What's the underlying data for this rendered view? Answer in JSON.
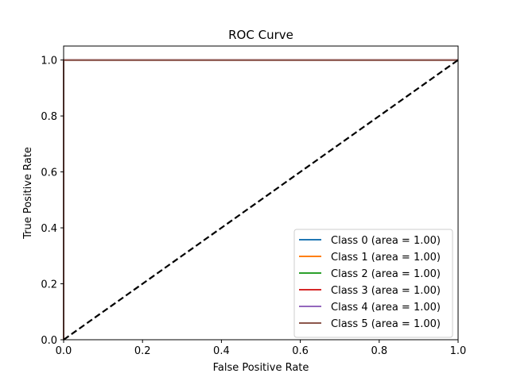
{
  "chart_data": {
    "type": "line",
    "title": "ROC Curve",
    "xlabel": "False Positive Rate",
    "ylabel": "True Positive Rate",
    "xlim": [
      0.0,
      1.0
    ],
    "ylim": [
      0.0,
      1.05
    ],
    "x_ticks": [
      "0.0",
      "0.2",
      "0.4",
      "0.6",
      "0.8",
      "1.0"
    ],
    "y_ticks": [
      "0.0",
      "0.2",
      "0.4",
      "0.6",
      "0.8",
      "1.0"
    ],
    "grid": false,
    "legend_position": "lower-right",
    "series": [
      {
        "name": "Class 0 (area = 1.00)",
        "color": "#1f77b4",
        "points": [
          [
            0.0,
            0.0
          ],
          [
            0.0,
            1.0
          ],
          [
            1.0,
            1.0
          ]
        ]
      },
      {
        "name": "Class 1 (area = 1.00)",
        "color": "#ff7f0e",
        "points": [
          [
            0.0,
            0.0
          ],
          [
            0.0,
            1.0
          ],
          [
            1.0,
            1.0
          ]
        ]
      },
      {
        "name": "Class 2 (area = 1.00)",
        "color": "#2ca02c",
        "points": [
          [
            0.0,
            0.0
          ],
          [
            0.0,
            1.0
          ],
          [
            1.0,
            1.0
          ]
        ]
      },
      {
        "name": "Class 3 (area = 1.00)",
        "color": "#d62728",
        "points": [
          [
            0.0,
            0.0
          ],
          [
            0.0,
            1.0
          ],
          [
            1.0,
            1.0
          ]
        ]
      },
      {
        "name": "Class 4 (area = 1.00)",
        "color": "#9467bd",
        "points": [
          [
            0.0,
            0.0
          ],
          [
            0.0,
            1.0
          ],
          [
            1.0,
            1.0
          ]
        ]
      },
      {
        "name": "Class 5 (area = 1.00)",
        "color": "#8c564b",
        "points": [
          [
            0.0,
            0.0
          ],
          [
            0.0,
            1.0
          ],
          [
            1.0,
            1.0
          ]
        ]
      }
    ],
    "reference_line": {
      "color": "#000000",
      "style": "dashed",
      "points": [
        [
          0.0,
          0.0
        ],
        [
          1.0,
          1.0
        ]
      ]
    }
  }
}
